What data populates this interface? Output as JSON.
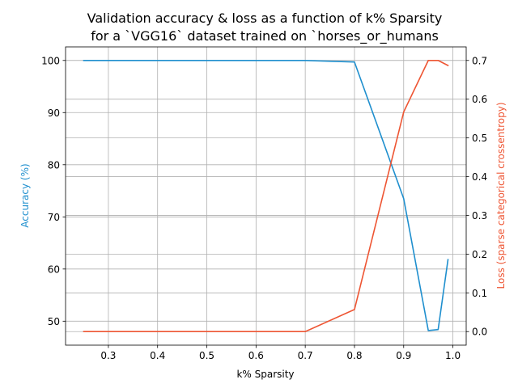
{
  "chart_data": {
    "type": "line",
    "title_line1": "Validation accuracy & loss as a function of k% Sparsity",
    "title_line2": "for a `VGG16` dataset trained on `horses_or_humans",
    "xlabel": "k% Sparsity",
    "ylabel_left": "Accuracy (%)",
    "ylabel_right": "Loss (sparse categorical crossentropy)",
    "xlim": [
      0.213,
      1.027
    ],
    "ylim_left": [
      45.4,
      102.6
    ],
    "ylim_right": [
      -0.035,
      0.735
    ],
    "x_ticks": [
      "0.3",
      "0.4",
      "0.5",
      "0.6",
      "0.7",
      "0.8",
      "0.9",
      "1.0"
    ],
    "x_tick_values": [
      0.3,
      0.4,
      0.5,
      0.6,
      0.7,
      0.8,
      0.9,
      1.0
    ],
    "y_left_ticks": [
      "50",
      "60",
      "70",
      "80",
      "90",
      "100"
    ],
    "y_left_tick_values": [
      50,
      60,
      70,
      80,
      90,
      100
    ],
    "y_right_ticks": [
      "0.0",
      "0.1",
      "0.2",
      "0.3",
      "0.4",
      "0.5",
      "0.6",
      "0.7"
    ],
    "y_right_tick_values": [
      0.0,
      0.1,
      0.2,
      0.3,
      0.4,
      0.5,
      0.6,
      0.7
    ],
    "grid": true,
    "x": [
      0.25,
      0.5,
      0.6,
      0.7,
      0.8,
      0.9,
      0.95,
      0.97,
      0.99
    ],
    "series": [
      {
        "axis": "left",
        "color": "#1f8fce",
        "values": [
          100,
          100,
          100,
          100,
          99.7,
          73.5,
          48.2,
          48.4,
          61.8
        ]
      },
      {
        "axis": "right",
        "color": "#ee5533",
        "values": [
          0.0,
          0.0,
          0.0,
          0.0,
          0.057,
          0.567,
          0.7,
          0.7,
          0.687
        ]
      }
    ]
  }
}
